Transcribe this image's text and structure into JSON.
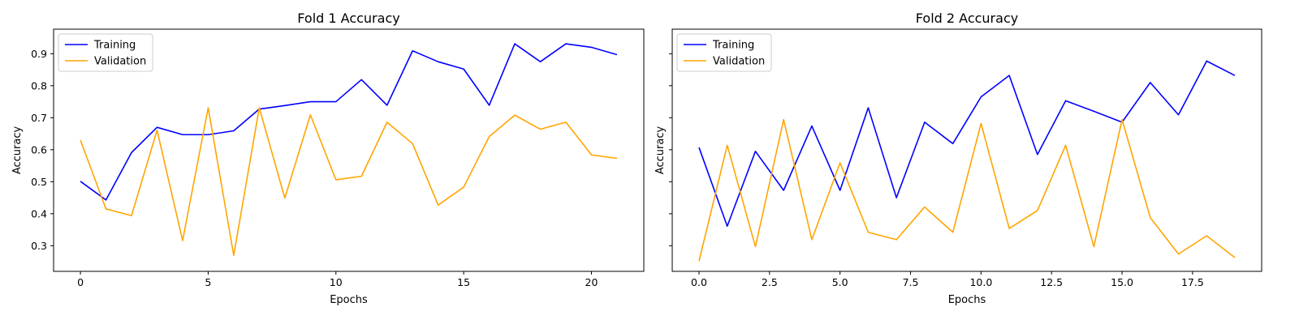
{
  "chart_data": [
    {
      "type": "line",
      "title": "Fold 1 Accuracy",
      "xlabel": "Epochs",
      "ylabel": "Accuracy",
      "xlim": [
        -1.05,
        22.05
      ],
      "ylim": [
        0.2199,
        0.9767
      ],
      "xticks": [
        0,
        5,
        10,
        15,
        20
      ],
      "xtick_labels": [
        "0",
        "5",
        "10",
        "15",
        "20"
      ],
      "yticks": [
        0.3,
        0.4,
        0.5,
        0.6,
        0.7,
        0.8,
        0.9
      ],
      "ytick_labels": [
        "0.3",
        "0.4",
        "0.5",
        "0.6",
        "0.7",
        "0.8",
        "0.9"
      ],
      "show_yticklabels": true,
      "legend_position": "upper-left",
      "grid": false,
      "x": [
        0,
        1,
        2,
        3,
        4,
        5,
        6,
        7,
        8,
        9,
        10,
        11,
        12,
        13,
        14,
        15,
        16,
        17,
        18,
        19,
        20,
        21
      ],
      "series": [
        {
          "name": "Training",
          "color": "#0000ff",
          "values": [
            0.501,
            0.443,
            0.591,
            0.67,
            0.647,
            0.647,
            0.659,
            0.727,
            0.738,
            0.75,
            0.75,
            0.819,
            0.739,
            0.909,
            0.875,
            0.852,
            0.739,
            0.931,
            0.875,
            0.931,
            0.92,
            0.897
          ]
        },
        {
          "name": "Validation",
          "color": "#ffa500",
          "values": [
            0.63,
            0.415,
            0.394,
            0.661,
            0.316,
            0.731,
            0.27,
            0.731,
            0.449,
            0.709,
            0.506,
            0.517,
            0.686,
            0.619,
            0.427,
            0.483,
            0.641,
            0.708,
            0.664,
            0.686,
            0.584,
            0.573
          ]
        }
      ]
    },
    {
      "type": "line",
      "title": "Fold 2 Accuracy",
      "xlabel": "Epochs",
      "ylabel": "Accuracy",
      "xlim": [
        -0.95,
        19.95
      ],
      "ylim": [
        0.2199,
        0.9767
      ],
      "xticks": [
        0,
        2.5,
        5,
        7.5,
        10,
        12.5,
        15,
        17.5
      ],
      "xtick_labels": [
        "0.0",
        "2.5",
        "5.0",
        "7.5",
        "10.0",
        "12.5",
        "15.0",
        "17.5"
      ],
      "yticks": [
        0.3,
        0.4,
        0.5,
        0.6,
        0.7,
        0.8,
        0.9
      ],
      "ytick_labels": [],
      "show_yticklabels": false,
      "legend_position": "upper-left",
      "grid": false,
      "x": [
        0,
        1,
        2,
        3,
        4,
        5,
        6,
        7,
        8,
        9,
        10,
        11,
        12,
        13,
        14,
        15,
        16,
        17,
        18,
        19
      ],
      "series": [
        {
          "name": "Training",
          "color": "#0000ff",
          "values": [
            0.607,
            0.361,
            0.595,
            0.473,
            0.674,
            0.473,
            0.731,
            0.45,
            0.686,
            0.619,
            0.765,
            0.832,
            0.585,
            0.753,
            0.72,
            0.686,
            0.81,
            0.709,
            0.877,
            0.832
          ]
        },
        {
          "name": "Validation",
          "color": "#ffa500",
          "values": [
            0.252,
            0.614,
            0.297,
            0.694,
            0.319,
            0.559,
            0.342,
            0.319,
            0.421,
            0.342,
            0.682,
            0.354,
            0.41,
            0.614,
            0.297,
            0.694,
            0.388,
            0.274,
            0.331,
            0.263
          ]
        }
      ]
    }
  ]
}
